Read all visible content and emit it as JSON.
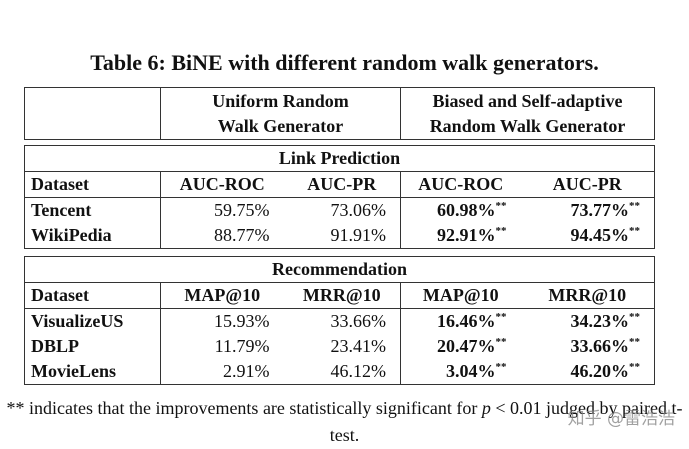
{
  "caption": "Table 6: BiNE with different random walk generators.",
  "header": {
    "group1": [
      "Uniform Random",
      "Walk Generator"
    ],
    "group2": [
      "Biased and Self-adaptive",
      "Random Walk Generator"
    ]
  },
  "sections": [
    {
      "title": "Link Prediction",
      "columns": [
        "Dataset",
        "AUC-ROC",
        "AUC-PR",
        "AUC-ROC",
        "AUC-PR"
      ],
      "rows": [
        [
          "Tencent",
          "59.75%",
          "73.06%",
          {
            "value": "60.98%",
            "mark": "**"
          },
          {
            "value": "73.77%",
            "mark": "**"
          }
        ],
        [
          "WikiPedia",
          "88.77%",
          "91.91%",
          {
            "value": "92.91%",
            "mark": "**"
          },
          {
            "value": "94.45%",
            "mark": "**"
          }
        ]
      ]
    },
    {
      "title": "Recommendation",
      "columns": [
        "Dataset",
        "MAP@10",
        "MRR@10",
        "MAP@10",
        "MRR@10"
      ],
      "rows": [
        [
          "VisualizeUS",
          "15.93%",
          "33.66%",
          {
            "value": "16.46%",
            "mark": "**"
          },
          {
            "value": "34.23%",
            "mark": "**"
          }
        ],
        [
          "DBLP",
          "11.79%",
          "23.41%",
          {
            "value": "20.47%",
            "mark": "**"
          },
          {
            "value": "33.66%",
            "mark": "**"
          }
        ],
        [
          "MovieLens",
          "2.91%",
          "46.12%",
          {
            "value": "3.04%",
            "mark": "**"
          },
          {
            "value": "46.20%",
            "mark": "**"
          }
        ]
      ]
    }
  ],
  "footnote": {
    "before": "** indicates that the improvements are statistically significant for ",
    "symbol": "p",
    "after": " < 0.01 judged by paired t-test."
  },
  "watermark": "知乎 @雷浩浩"
}
